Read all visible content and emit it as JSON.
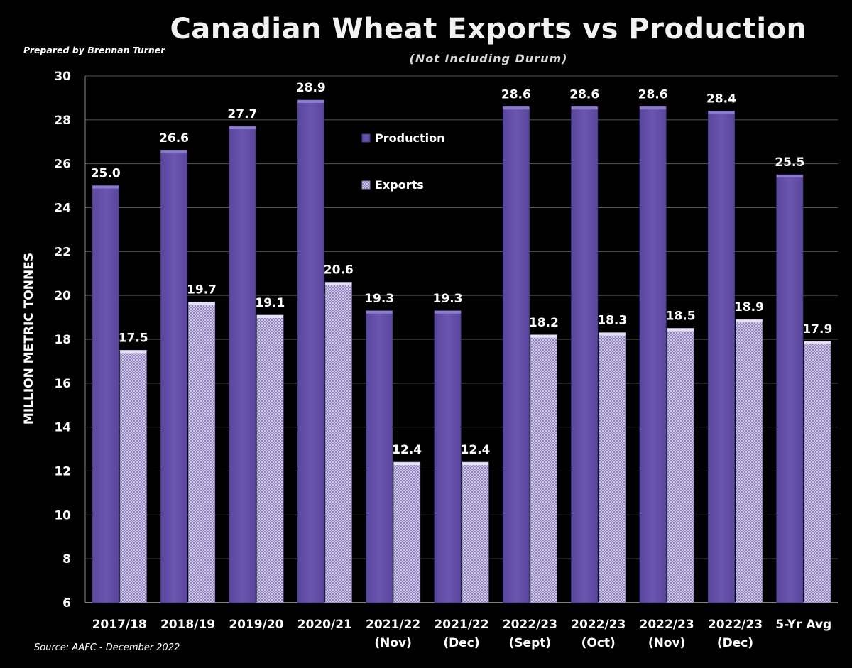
{
  "header": {
    "prepared_by": "Prepared by Brennan Turner",
    "source": "Source: AAFC -  December 2022"
  },
  "chart_data": {
    "type": "bar",
    "title": "Canadian Wheat Exports vs Production",
    "subtitle": "(Not Including Durum)",
    "xlabel": "",
    "ylabel": "MILLION METRIC TONNES",
    "ylim": [
      6,
      30
    ],
    "yticks": [
      6,
      8,
      10,
      12,
      14,
      16,
      18,
      20,
      22,
      24,
      26,
      28,
      30
    ],
    "grid": true,
    "legend": "center-top",
    "categories": [
      [
        "2017/18"
      ],
      [
        "2018/19"
      ],
      [
        "2019/20"
      ],
      [
        "2020/21"
      ],
      [
        "2021/22",
        "(Nov)"
      ],
      [
        "2021/22",
        "(Dec)"
      ],
      [
        "2022/23",
        "(Sept)"
      ],
      [
        "2022/23",
        "(Oct)"
      ],
      [
        "2022/23",
        "(Nov)"
      ],
      [
        "2022/23",
        "(Dec)"
      ],
      [
        "5-Yr Avg"
      ]
    ],
    "series": [
      {
        "name": "Production",
        "color": "#6450a8",
        "values": [
          25.0,
          26.6,
          27.7,
          28.9,
          19.3,
          19.3,
          28.6,
          28.6,
          28.6,
          28.4,
          25.5
        ]
      },
      {
        "name": "Exports",
        "color": "#c4bcdc",
        "values": [
          17.5,
          19.7,
          19.1,
          20.6,
          12.4,
          12.4,
          18.2,
          18.3,
          18.5,
          18.9,
          17.9
        ]
      }
    ]
  }
}
